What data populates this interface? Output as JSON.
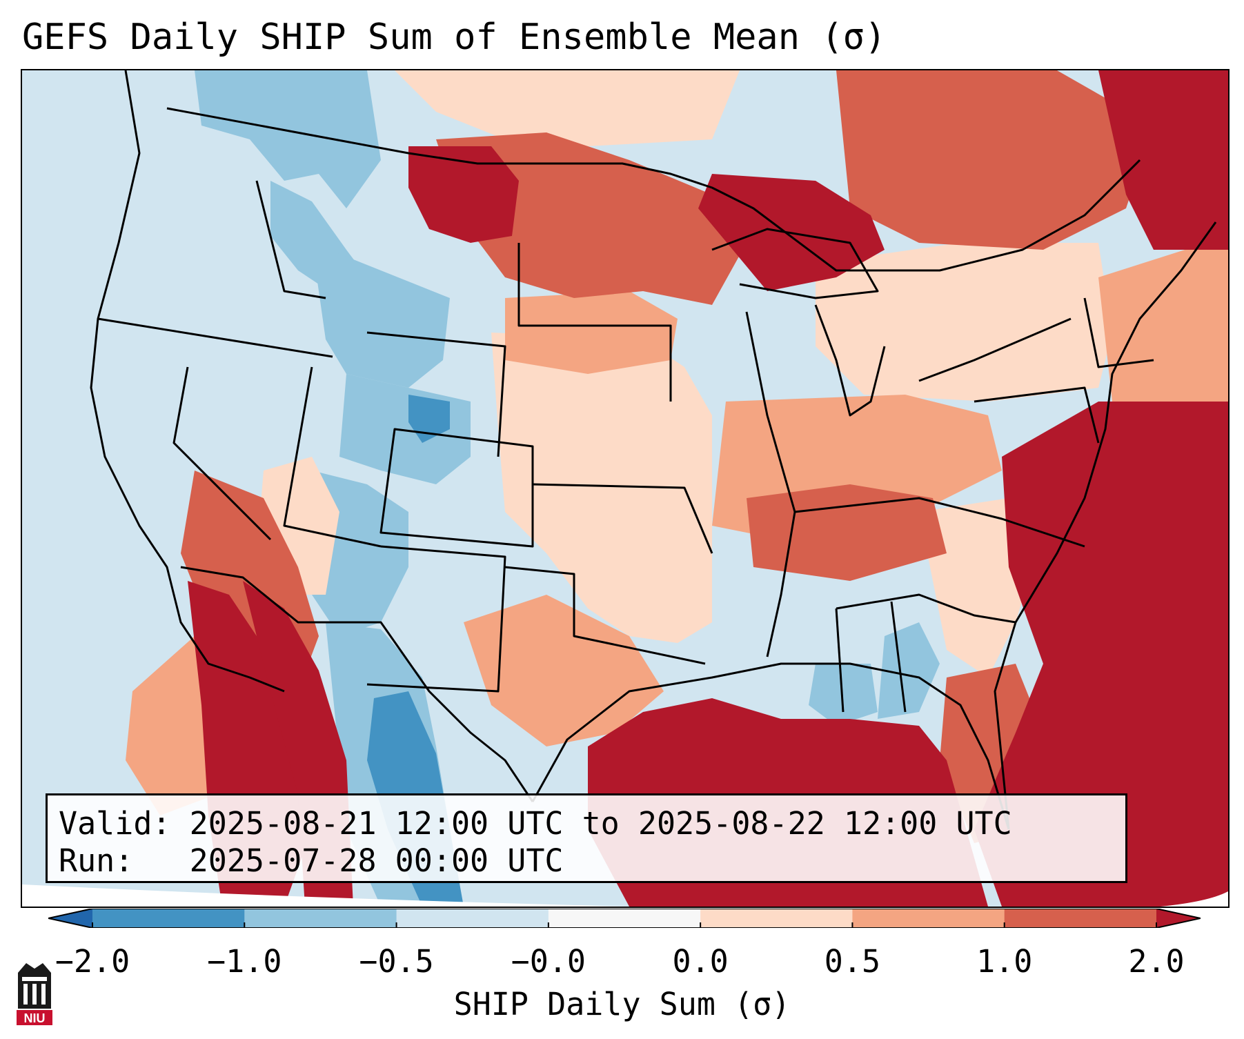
{
  "title": "GEFS Daily SHIP Sum of Ensemble Mean (σ)",
  "info": {
    "valid_label": "Valid:",
    "valid_value": "2025-08-21 12:00 UTC to 2025-08-22 12:00 UTC",
    "run_label": "Run:",
    "run_value": "2025-07-28 00:00 UTC"
  },
  "colorbar": {
    "title": "SHIP Daily Sum (σ)",
    "tick_labels": [
      "−2.0",
      "−1.0",
      "−0.5",
      "−0.0",
      "0.0",
      "0.5",
      "1.0",
      "2.0"
    ],
    "bins": [
      {
        "from": -2.0,
        "to": -1.0,
        "color": "#4393c3"
      },
      {
        "from": -1.0,
        "to": -0.5,
        "color": "#92c5de"
      },
      {
        "from": -0.5,
        "to": -0.0,
        "color": "#d1e5f0"
      },
      {
        "from": -0.0,
        "to": 0.0,
        "color": "#f7f7f7"
      },
      {
        "from": 0.0,
        "to": 0.5,
        "color": "#fddbc7"
      },
      {
        "from": 0.5,
        "to": 1.0,
        "color": "#f4a582"
      },
      {
        "from": 1.0,
        "to": 2.0,
        "color": "#d6604d"
      }
    ],
    "under_color": "#2166ac",
    "over_color": "#b2182b"
  },
  "colors": {
    "strong_neg": "#4393c3",
    "mod_neg": "#92c5de",
    "weak_neg": "#d1e5f0",
    "weak_pos": "#fddbc7",
    "mod_pos": "#f4a582",
    "strong_pos": "#d6604d",
    "extreme_pos": "#b2182b"
  },
  "logo": {
    "text": "NIU",
    "icon": "niu-tower-icon"
  }
}
